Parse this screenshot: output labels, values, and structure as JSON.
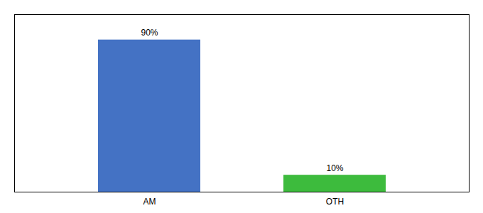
{
  "chart_data": {
    "type": "bar",
    "categories": [
      "AM",
      "OTH"
    ],
    "values": [
      90,
      10
    ],
    "value_labels": [
      "90%",
      "10%"
    ],
    "colors": [
      "#4472c4",
      "#3dbb3d"
    ],
    "ylim": [
      0,
      105
    ],
    "yticks": [],
    "data_labels": true,
    "tick_labels": "x"
  }
}
